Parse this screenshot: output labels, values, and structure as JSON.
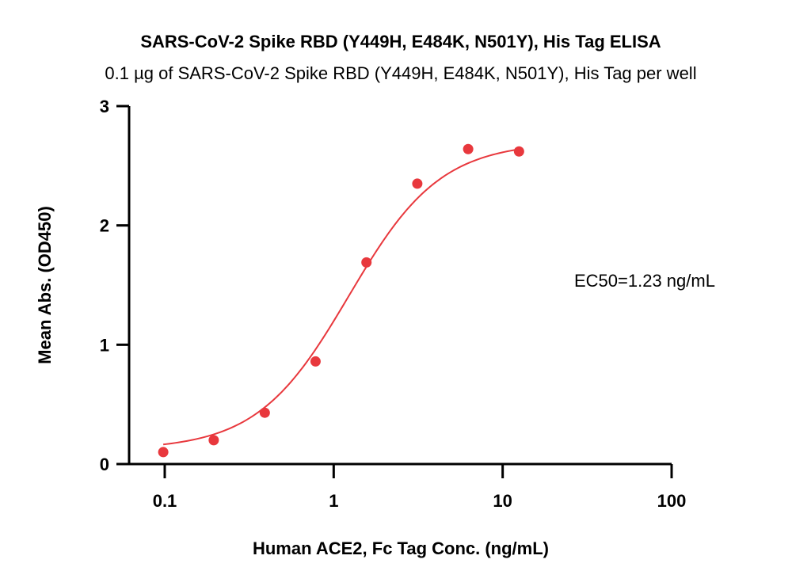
{
  "chart_data": {
    "type": "scatter",
    "title": "SARS-CoV-2 Spike RBD (Y449H, E484K, N501Y), His Tag ELISA",
    "subtitle": "0.1 µg of SARS-CoV-2 Spike RBD (Y449H, E484K, N501Y), His Tag per well",
    "xlabel": "Human ACE2, Fc Tag Conc. (ng/mL)",
    "ylabel": "Mean Abs. (OD450)",
    "xscale": "log",
    "xlim": [
      0.05,
      100
    ],
    "ylim": [
      0,
      3
    ],
    "x_ticks": [
      0.1,
      1,
      10,
      100
    ],
    "x_tick_labels": [
      "0.1",
      "1",
      "10",
      "100"
    ],
    "y_ticks": [
      0,
      1,
      2,
      3
    ],
    "y_tick_labels": [
      "0",
      "1",
      "2",
      "3"
    ],
    "grid": false,
    "series": [
      {
        "x": [
          0.098,
          0.195,
          0.391,
          0.781,
          1.563,
          3.125,
          6.25,
          12.5
        ],
        "y": [
          0.1,
          0.2,
          0.43,
          0.86,
          1.69,
          2.35,
          2.64,
          2.62
        ],
        "color": "#e8383d",
        "fit": {
          "model": "4PL",
          "bottom": 0.12,
          "top": 2.7,
          "ec50": 1.23,
          "hill": 1.6,
          "x_range": [
            0.098,
            12.5
          ]
        }
      }
    ],
    "annotations": [
      {
        "text": "EC50=1.23 ng/mL"
      }
    ]
  }
}
